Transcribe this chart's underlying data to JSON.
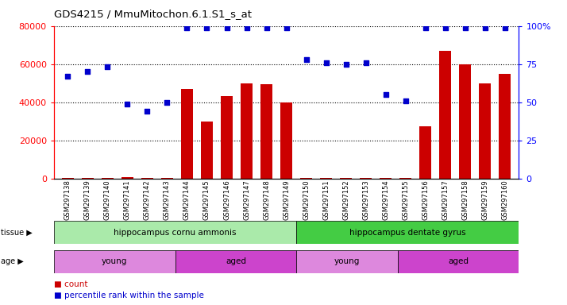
{
  "title": "GDS4215 / MmuMitochon.6.1.S1_s_at",
  "samples": [
    "GSM297138",
    "GSM297139",
    "GSM297140",
    "GSM297141",
    "GSM297142",
    "GSM297143",
    "GSM297144",
    "GSM297145",
    "GSM297146",
    "GSM297147",
    "GSM297148",
    "GSM297149",
    "GSM297150",
    "GSM297151",
    "GSM297152",
    "GSM297153",
    "GSM297154",
    "GSM297155",
    "GSM297156",
    "GSM297157",
    "GSM297158",
    "GSM297159",
    "GSM297160"
  ],
  "counts": [
    300,
    300,
    300,
    800,
    300,
    300,
    47000,
    30000,
    43000,
    50000,
    49500,
    40000,
    300,
    300,
    300,
    300,
    300,
    300,
    27500,
    67000,
    60000,
    50000,
    55000
  ],
  "percentiles": [
    67,
    70,
    73,
    49,
    44,
    50,
    99,
    99,
    99,
    99,
    99,
    99,
    78,
    76,
    75,
    76,
    55,
    51,
    99,
    99,
    99,
    99,
    99
  ],
  "bar_color": "#cc0000",
  "dot_color": "#0000cc",
  "ylim_left": [
    0,
    80000
  ],
  "ylim_right": [
    0,
    100
  ],
  "yticks_left": [
    0,
    20000,
    40000,
    60000,
    80000
  ],
  "ytick_labels_left": [
    "0",
    "20000",
    "40000",
    "60000",
    "80000"
  ],
  "yticks_right": [
    0,
    25,
    50,
    75,
    100
  ],
  "ytick_labels_right": [
    "0",
    "25",
    "50",
    "75",
    "100%"
  ],
  "tissue_groups": [
    {
      "label": "hippocampus cornu ammonis",
      "start": 0,
      "end": 12,
      "color": "#aaeaaa"
    },
    {
      "label": "hippocampus dentate gyrus",
      "start": 12,
      "end": 23,
      "color": "#44cc44"
    }
  ],
  "age_groups": [
    {
      "label": "young",
      "start": 0,
      "end": 6,
      "color": "#dd88dd"
    },
    {
      "label": "aged",
      "start": 6,
      "end": 12,
      "color": "#cc44cc"
    },
    {
      "label": "young",
      "start": 12,
      "end": 17,
      "color": "#dd88dd"
    },
    {
      "label": "aged",
      "start": 17,
      "end": 23,
      "color": "#cc44cc"
    }
  ],
  "legend_count_color": "#cc0000",
  "legend_pct_color": "#0000cc",
  "bg_color": "#ffffff",
  "plot_bg_color": "#f0f0f0"
}
